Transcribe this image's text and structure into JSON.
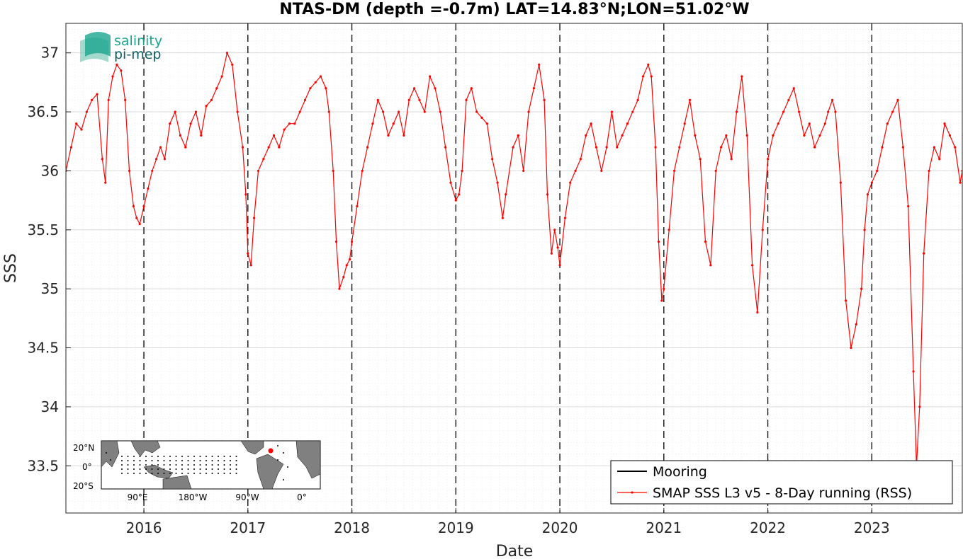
{
  "chart_data": {
    "type": "line",
    "title": "NTAS-DM (depth =-0.7m) LAT=14.83°N;LON=51.02°W",
    "xlabel": "Date",
    "ylabel": "SSS",
    "xlim": [
      2015.25,
      2023.87
    ],
    "ylim": [
      33.1,
      37.25
    ],
    "x_ticks": [
      2016,
      2017,
      2018,
      2019,
      2020,
      2021,
      2022,
      2023
    ],
    "y_ticks": [
      33.5,
      34,
      34.5,
      35,
      35.5,
      36,
      36.5,
      37
    ],
    "year_lines": [
      2016,
      2017,
      2018,
      2019,
      2020,
      2021,
      2022,
      2023
    ],
    "grid": true,
    "legend_position": "bottom-right",
    "series": [
      {
        "name": "Mooring",
        "color": "#000000",
        "x": [],
        "y": []
      },
      {
        "name": "SMAP SSS L3 v5 - 8-Day running (RSS)",
        "color": "#ff0000",
        "x": [
          2015.25,
          2015.3,
          2015.35,
          2015.4,
          2015.45,
          2015.5,
          2015.55,
          2015.6,
          2015.63,
          2015.66,
          2015.7,
          2015.74,
          2015.78,
          2015.82,
          2015.86,
          2015.9,
          2015.93,
          2015.96,
          2016.0,
          2016.04,
          2016.08,
          2016.12,
          2016.16,
          2016.2,
          2016.25,
          2016.3,
          2016.35,
          2016.4,
          2016.45,
          2016.5,
          2016.55,
          2016.6,
          2016.65,
          2016.7,
          2016.75,
          2016.8,
          2016.85,
          2016.9,
          2016.95,
          2016.98,
          2017.0,
          2017.03,
          2017.06,
          2017.1,
          2017.15,
          2017.2,
          2017.25,
          2017.3,
          2017.35,
          2017.4,
          2017.45,
          2017.5,
          2017.55,
          2017.6,
          2017.65,
          2017.7,
          2017.75,
          2017.78,
          2017.82,
          2017.85,
          2017.88,
          2017.92,
          2017.95,
          2017.98,
          2018.0,
          2018.05,
          2018.1,
          2018.15,
          2018.2,
          2018.25,
          2018.3,
          2018.35,
          2018.4,
          2018.45,
          2018.5,
          2018.55,
          2018.6,
          2018.65,
          2018.7,
          2018.75,
          2018.8,
          2018.85,
          2018.9,
          2018.95,
          2019.0,
          2019.03,
          2019.06,
          2019.1,
          2019.15,
          2019.2,
          2019.25,
          2019.3,
          2019.35,
          2019.4,
          2019.45,
          2019.48,
          2019.55,
          2019.6,
          2019.65,
          2019.7,
          2019.75,
          2019.8,
          2019.85,
          2019.88,
          2019.92,
          2019.95,
          2019.98,
          2020.0,
          2020.05,
          2020.1,
          2020.15,
          2020.2,
          2020.25,
          2020.3,
          2020.35,
          2020.4,
          2020.45,
          2020.5,
          2020.55,
          2020.6,
          2020.65,
          2020.7,
          2020.75,
          2020.8,
          2020.85,
          2020.88,
          2020.92,
          2020.95,
          2020.98,
          2021.0,
          2021.05,
          2021.1,
          2021.15,
          2021.2,
          2021.25,
          2021.3,
          2021.35,
          2021.4,
          2021.45,
          2021.5,
          2021.55,
          2021.6,
          2021.65,
          2021.7,
          2021.75,
          2021.8,
          2021.85,
          2021.9,
          2021.95,
          2022.0,
          2022.05,
          2022.1,
          2022.15,
          2022.2,
          2022.25,
          2022.3,
          2022.35,
          2022.4,
          2022.45,
          2022.5,
          2022.55,
          2022.58,
          2022.62,
          2022.65,
          2022.7,
          2022.75,
          2022.8,
          2022.85,
          2022.9,
          2022.93,
          2022.96,
          2023.0,
          2023.05,
          2023.1,
          2023.15,
          2023.2,
          2023.25,
          2023.3,
          2023.35,
          2023.4,
          2023.43,
          2023.46,
          2023.5,
          2023.55,
          2023.6,
          2023.65,
          2023.7,
          2023.75,
          2023.8,
          2023.85,
          2023.87
        ],
        "y": [
          36.0,
          36.2,
          36.4,
          36.35,
          36.5,
          36.6,
          36.65,
          36.1,
          35.9,
          36.6,
          36.8,
          36.9,
          36.85,
          36.6,
          36.0,
          35.7,
          35.6,
          35.55,
          35.7,
          35.85,
          36.0,
          36.1,
          36.2,
          36.1,
          36.4,
          36.5,
          36.3,
          36.2,
          36.4,
          36.5,
          36.3,
          36.55,
          36.6,
          36.7,
          36.8,
          37.0,
          36.9,
          36.5,
          36.2,
          35.8,
          35.3,
          35.2,
          35.6,
          36.0,
          36.1,
          36.2,
          36.3,
          36.2,
          36.35,
          36.4,
          36.4,
          36.5,
          36.6,
          36.7,
          36.75,
          36.8,
          36.7,
          36.5,
          36.0,
          35.4,
          35.0,
          35.1,
          35.2,
          35.25,
          35.4,
          35.7,
          36.0,
          36.2,
          36.4,
          36.6,
          36.5,
          36.3,
          36.4,
          36.5,
          36.3,
          36.6,
          36.7,
          36.6,
          36.5,
          36.8,
          36.7,
          36.5,
          36.2,
          35.9,
          35.75,
          35.8,
          36.0,
          36.6,
          36.7,
          36.5,
          36.45,
          36.4,
          36.1,
          35.9,
          35.6,
          35.8,
          36.2,
          36.3,
          36.0,
          36.5,
          36.7,
          36.9,
          36.6,
          35.8,
          35.3,
          35.5,
          35.35,
          35.2,
          35.6,
          35.9,
          36.0,
          36.1,
          36.3,
          36.4,
          36.2,
          36.0,
          36.2,
          36.5,
          36.2,
          36.3,
          36.4,
          36.5,
          36.6,
          36.8,
          36.9,
          36.8,
          36.2,
          35.4,
          34.9,
          35.0,
          35.5,
          36.0,
          36.2,
          36.4,
          36.6,
          36.3,
          36.1,
          35.4,
          35.2,
          36.0,
          36.2,
          36.3,
          36.1,
          36.5,
          36.8,
          36.3,
          35.2,
          34.8,
          35.5,
          36.1,
          36.3,
          36.4,
          36.5,
          36.6,
          36.7,
          36.5,
          36.3,
          36.4,
          36.2,
          36.3,
          36.4,
          36.5,
          36.6,
          36.5,
          35.9,
          34.9,
          34.5,
          34.7,
          35.0,
          35.5,
          35.8,
          35.9,
          36.0,
          36.2,
          36.4,
          36.5,
          36.6,
          36.2,
          35.7,
          34.3,
          33.5,
          34.0,
          35.3,
          36.0,
          36.2,
          36.1,
          36.4,
          36.3,
          36.2,
          35.9,
          36.0
        ]
      }
    ]
  },
  "logo": {
    "line1": "salinity",
    "line2": "pi-mep"
  },
  "inset_map": {
    "y_labels": [
      "20°N",
      "0°",
      "20°S"
    ],
    "x_labels": [
      "90°E",
      "180°W",
      "90°W",
      "0°"
    ],
    "marker_color": "#ff0000"
  }
}
